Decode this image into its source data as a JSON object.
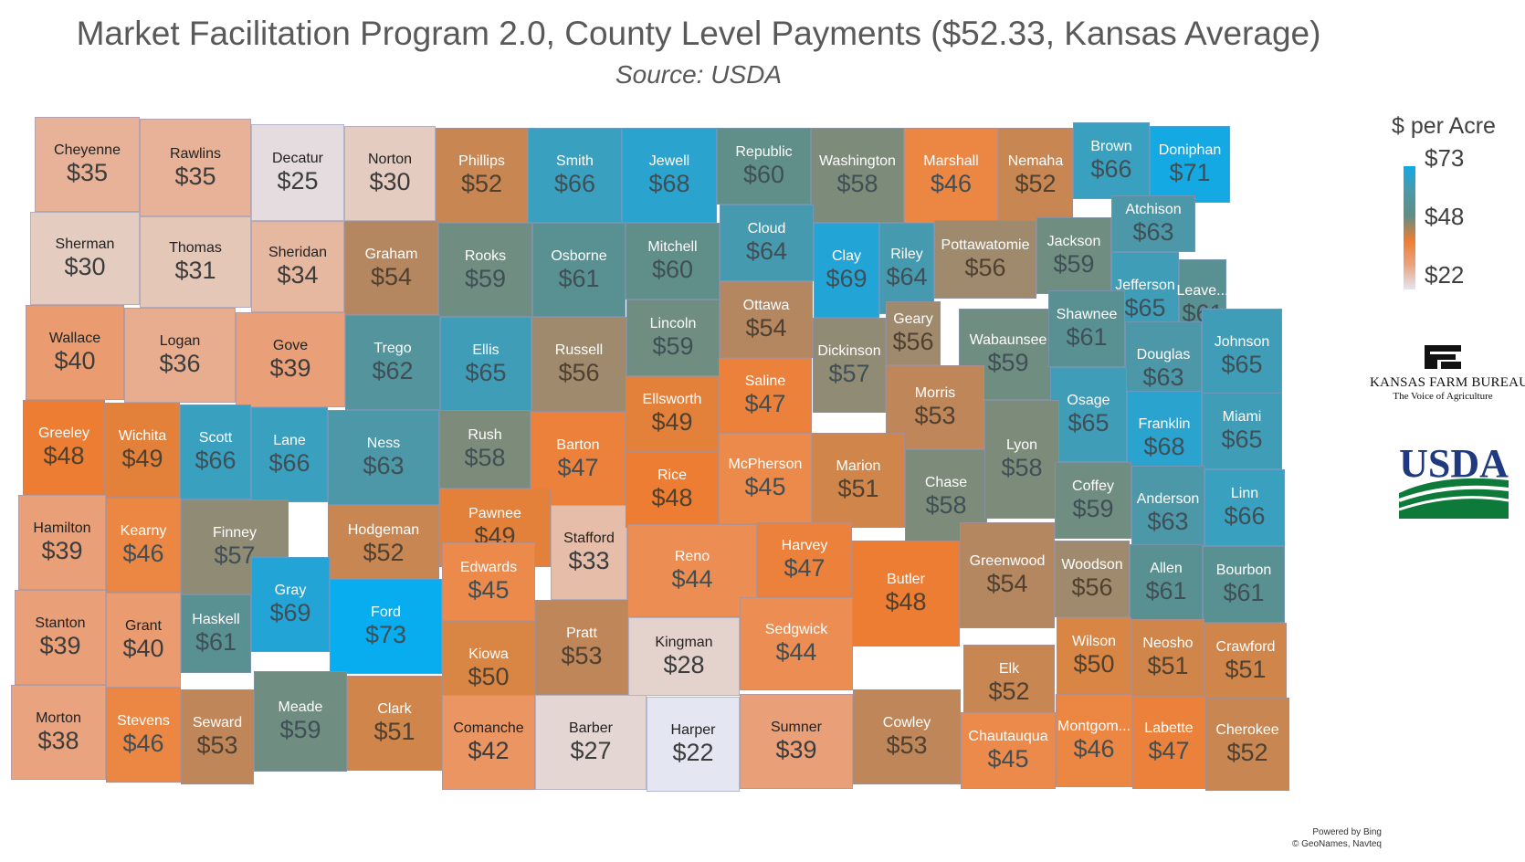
{
  "title": "Market Facilitation Program 2.0, County Level Payments ($52.33, Kansas Average)",
  "subtitle": "Source: USDA",
  "legend": {
    "title": "$ per Acre",
    "max_label": "$73",
    "mid_label": "$48",
    "min_label": "$22",
    "colors": {
      "high": "#12A9E6",
      "mid": "#EC7D32",
      "low": "#E4E6F2"
    }
  },
  "logos": {
    "kfb_name": "KANSAS FARM BUREAU",
    "kfb_tagline": "The Voice of Agriculture",
    "usda": "USDA"
  },
  "credit": {
    "line1": "Powered by Bing",
    "line2": "© GeoNames, Navteq"
  },
  "counties": [
    {
      "name": "Cheyenne",
      "value": "$35"
    },
    {
      "name": "Rawlins",
      "value": "$35"
    },
    {
      "name": "Decatur",
      "value": "$25"
    },
    {
      "name": "Norton",
      "value": "$30"
    },
    {
      "name": "Phillips",
      "value": "$52"
    },
    {
      "name": "Smith",
      "value": "$66"
    },
    {
      "name": "Jewell",
      "value": "$68"
    },
    {
      "name": "Republic",
      "value": "$60"
    },
    {
      "name": "Washington",
      "value": "$58"
    },
    {
      "name": "Marshall",
      "value": "$46"
    },
    {
      "name": "Nemaha",
      "value": "$52"
    },
    {
      "name": "Brown",
      "value": "$66"
    },
    {
      "name": "Doniphan",
      "value": "$71"
    },
    {
      "name": "Sherman",
      "value": "$30"
    },
    {
      "name": "Thomas",
      "value": "$31"
    },
    {
      "name": "Sheridan",
      "value": "$34"
    },
    {
      "name": "Graham",
      "value": "$54"
    },
    {
      "name": "Rooks",
      "value": "$59"
    },
    {
      "name": "Osborne",
      "value": "$61"
    },
    {
      "name": "Mitchell",
      "value": "$60"
    },
    {
      "name": "Cloud",
      "value": "$64"
    },
    {
      "name": "Clay",
      "value": "$69"
    },
    {
      "name": "Riley",
      "value": "$64"
    },
    {
      "name": "Pottawatomie",
      "value": "$56"
    },
    {
      "name": "Jackson",
      "value": "$59"
    },
    {
      "name": "Atchison",
      "value": "$63"
    },
    {
      "name": "Jefferson",
      "value": "$65"
    },
    {
      "name": "Leave...",
      "value": "$61"
    },
    {
      "name": "Wallace",
      "value": "$40"
    },
    {
      "name": "Logan",
      "value": "$36"
    },
    {
      "name": "Gove",
      "value": "$39"
    },
    {
      "name": "Trego",
      "value": "$62"
    },
    {
      "name": "Ellis",
      "value": "$65"
    },
    {
      "name": "Russell",
      "value": "$56"
    },
    {
      "name": "Lincoln",
      "value": "$59"
    },
    {
      "name": "Ottawa",
      "value": "$54"
    },
    {
      "name": "Dickinson",
      "value": "$57"
    },
    {
      "name": "Geary",
      "value": "$56"
    },
    {
      "name": "Wabaunsee",
      "value": "$59"
    },
    {
      "name": "Shawnee",
      "value": "$61"
    },
    {
      "name": "Douglas",
      "value": "$63"
    },
    {
      "name": "Johnson",
      "value": "$65"
    },
    {
      "name": "Greeley",
      "value": "$48"
    },
    {
      "name": "Wichita",
      "value": "$49"
    },
    {
      "name": "Scott",
      "value": "$66"
    },
    {
      "name": "Lane",
      "value": "$66"
    },
    {
      "name": "Ness",
      "value": "$63"
    },
    {
      "name": "Rush",
      "value": "$58"
    },
    {
      "name": "Barton",
      "value": "$47"
    },
    {
      "name": "Ellsworth",
      "value": "$49"
    },
    {
      "name": "Saline",
      "value": "$47"
    },
    {
      "name": "Morris",
      "value": "$53"
    },
    {
      "name": "Osage",
      "value": "$65"
    },
    {
      "name": "Franklin",
      "value": "$68"
    },
    {
      "name": "Miami",
      "value": "$65"
    },
    {
      "name": "Hamilton",
      "value": "$39"
    },
    {
      "name": "Kearny",
      "value": "$46"
    },
    {
      "name": "Finney",
      "value": "$57"
    },
    {
      "name": "Hodgeman",
      "value": "$52"
    },
    {
      "name": "Pawnee",
      "value": "$49"
    },
    {
      "name": "Stafford",
      "value": "$33"
    },
    {
      "name": "Rice",
      "value": "$48"
    },
    {
      "name": "McPherson",
      "value": "$45"
    },
    {
      "name": "Marion",
      "value": "$51"
    },
    {
      "name": "Chase",
      "value": "$58"
    },
    {
      "name": "Lyon",
      "value": "$58"
    },
    {
      "name": "Coffey",
      "value": "$59"
    },
    {
      "name": "Anderson",
      "value": "$63"
    },
    {
      "name": "Linn",
      "value": "$66"
    },
    {
      "name": "Gray",
      "value": "$69"
    },
    {
      "name": "Ford",
      "value": "$73"
    },
    {
      "name": "Edwards",
      "value": "$45"
    },
    {
      "name": "Reno",
      "value": "$44"
    },
    {
      "name": "Harvey",
      "value": "$47"
    },
    {
      "name": "Butler",
      "value": "$48"
    },
    {
      "name": "Greenwood",
      "value": "$54"
    },
    {
      "name": "Woodson",
      "value": "$56"
    },
    {
      "name": "Allen",
      "value": "$61"
    },
    {
      "name": "Bourbon",
      "value": "$61"
    },
    {
      "name": "Stanton",
      "value": "$39"
    },
    {
      "name": "Grant",
      "value": "$40"
    },
    {
      "name": "Haskell",
      "value": "$61"
    },
    {
      "name": "Kiowa",
      "value": "$50"
    },
    {
      "name": "Pratt",
      "value": "$53"
    },
    {
      "name": "Kingman",
      "value": "$28"
    },
    {
      "name": "Sedgwick",
      "value": "$44"
    },
    {
      "name": "Wilson",
      "value": "$50"
    },
    {
      "name": "Neosho",
      "value": "$51"
    },
    {
      "name": "Crawford",
      "value": "$51"
    },
    {
      "name": "Elk",
      "value": "$52"
    },
    {
      "name": "Morton",
      "value": "$38"
    },
    {
      "name": "Stevens",
      "value": "$46"
    },
    {
      "name": "Seward",
      "value": "$53"
    },
    {
      "name": "Meade",
      "value": "$59"
    },
    {
      "name": "Clark",
      "value": "$51"
    },
    {
      "name": "Comanche",
      "value": "$42"
    },
    {
      "name": "Barber",
      "value": "$27"
    },
    {
      "name": "Harper",
      "value": "$22"
    },
    {
      "name": "Sumner",
      "value": "$39"
    },
    {
      "name": "Cowley",
      "value": "$53"
    },
    {
      "name": "Chautauqua",
      "value": "$45"
    },
    {
      "name": "Montgom...",
      "value": "$46"
    },
    {
      "name": "Labette",
      "value": "$47"
    },
    {
      "name": "Cherokee",
      "value": "$52"
    }
  ]
}
